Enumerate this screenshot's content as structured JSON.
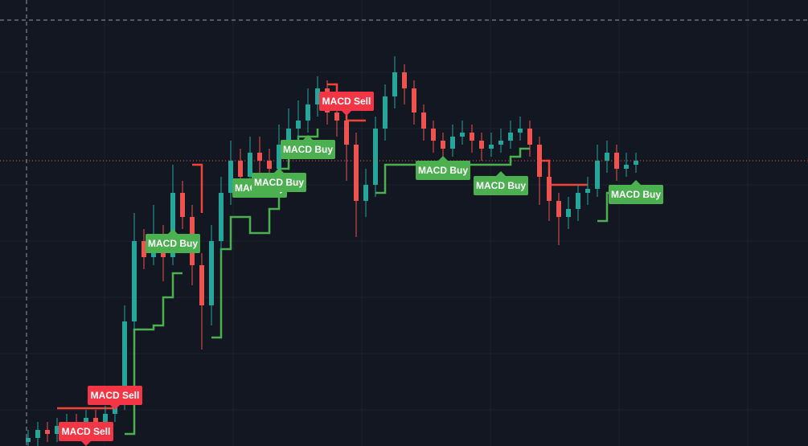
{
  "chart_data": {
    "type": "candlestick",
    "xlim": [
      0,
      80
    ],
    "ylim": [
      0,
      555
    ],
    "up_color": "#26a69a",
    "down_color": "#ef5350",
    "x": [
      0,
      1,
      2,
      3,
      4,
      5,
      6,
      7,
      8,
      9,
      10,
      11,
      12,
      13,
      14,
      15,
      16,
      17,
      18,
      19,
      20,
      21,
      22,
      23,
      24,
      25,
      26,
      27,
      28,
      29,
      30,
      31,
      32,
      33,
      34,
      35,
      36,
      37,
      38,
      39,
      40,
      41,
      42,
      43,
      44,
      45,
      46,
      47,
      48,
      49,
      50,
      51,
      52,
      53,
      54,
      55,
      56,
      57,
      58,
      59,
      60,
      61,
      62,
      63
    ],
    "open": [
      5,
      10,
      20,
      15,
      25,
      30,
      25,
      35,
      30,
      40,
      55,
      155,
      255,
      235,
      255,
      235,
      315,
      285,
      225,
      175,
      255,
      315,
      355,
      335,
      365,
      355,
      345,
      375,
      395,
      405,
      425,
      445,
      415,
      405,
      375,
      305,
      325,
      395,
      435,
      465,
      445,
      415,
      395,
      380,
      370,
      385,
      390,
      380,
      370,
      375,
      380,
      390,
      395,
      375,
      335,
      305,
      285,
      295,
      315,
      320,
      355,
      365,
      345,
      350
    ],
    "high": [
      20,
      30,
      30,
      35,
      40,
      40,
      45,
      45,
      50,
      65,
      175,
      290,
      270,
      300,
      275,
      350,
      330,
      300,
      240,
      275,
      335,
      380,
      370,
      385,
      385,
      370,
      400,
      420,
      430,
      445,
      460,
      455,
      425,
      415,
      390,
      345,
      410,
      450,
      485,
      475,
      455,
      425,
      405,
      390,
      400,
      405,
      400,
      390,
      390,
      395,
      405,
      410,
      405,
      385,
      345,
      315,
      310,
      325,
      335,
      375,
      380,
      375,
      365,
      365
    ],
    "low": [
      0,
      0,
      5,
      5,
      15,
      15,
      15,
      20,
      20,
      30,
      45,
      145,
      220,
      225,
      205,
      225,
      270,
      200,
      120,
      150,
      240,
      300,
      320,
      320,
      340,
      325,
      335,
      360,
      380,
      390,
      410,
      400,
      385,
      330,
      260,
      285,
      310,
      380,
      420,
      425,
      400,
      380,
      365,
      355,
      360,
      375,
      365,
      355,
      360,
      365,
      370,
      380,
      360,
      300,
      280,
      250,
      270,
      280,
      300,
      310,
      340,
      330,
      335,
      340
    ],
    "close": [
      10,
      20,
      15,
      25,
      30,
      25,
      35,
      30,
      40,
      55,
      155,
      255,
      235,
      255,
      235,
      315,
      285,
      225,
      175,
      255,
      315,
      355,
      335,
      365,
      355,
      345,
      375,
      395,
      405,
      425,
      445,
      415,
      405,
      375,
      305,
      325,
      395,
      435,
      465,
      445,
      415,
      395,
      380,
      370,
      385,
      390,
      380,
      370,
      375,
      380,
      390,
      395,
      375,
      335,
      305,
      285,
      295,
      315,
      320,
      355,
      365,
      345,
      350,
      355
    ],
    "stops": [
      {
        "color": "#4caf50",
        "values": [
          null,
          null,
          null,
          null,
          null,
          null,
          null,
          null,
          null,
          null,
          15,
          145,
          145,
          150,
          185,
          215,
          215,
          null,
          null,
          135,
          245,
          285,
          285,
          265,
          265,
          295,
          345,
          365,
          385,
          385,
          395,
          null,
          null,
          null,
          null,
          null,
          315,
          350,
          350,
          350,
          350,
          350,
          350,
          350,
          350,
          350,
          350,
          350,
          350,
          350,
          360,
          370,
          370,
          null,
          null,
          null,
          null,
          null,
          null,
          280,
          315,
          315,
          315,
          315
        ]
      },
      {
        "color": "#f44336",
        "values": [
          null,
          null,
          null,
          47,
          47,
          47,
          47,
          47,
          47,
          47,
          null,
          null,
          null,
          null,
          null,
          null,
          null,
          350,
          290,
          null,
          null,
          null,
          null,
          null,
          null,
          null,
          null,
          null,
          null,
          null,
          null,
          450,
          420,
          405,
          405,
          405,
          null,
          null,
          null,
          null,
          null,
          null,
          null,
          null,
          null,
          null,
          null,
          null,
          null,
          null,
          null,
          null,
          null,
          355,
          325,
          325,
          325,
          325,
          325,
          null,
          null,
          null,
          null,
          null
        ]
      }
    ],
    "signals": [
      {
        "text": "MACD Sell",
        "x": 6,
        "value": 18,
        "color": "#f23645",
        "pointer": "down"
      },
      {
        "text": "MACD Sell",
        "x": 9,
        "value": 63,
        "color": "#f23645",
        "pointer": "down"
      },
      {
        "text": "MACD Buy",
        "x": 15,
        "value": 252,
        "color": "#4caf50",
        "pointer": "up"
      },
      {
        "text": "MACD Buy",
        "x": 24,
        "value": 321,
        "color": "#4caf50",
        "pointer": "up"
      },
      {
        "text": "MACD Buy",
        "x": 26,
        "value": 328,
        "color": "#4caf50",
        "pointer": "up"
      },
      {
        "text": "MACD Buy",
        "x": 29,
        "value": 369,
        "color": "#4caf50",
        "pointer": "up"
      },
      {
        "text": "MACD Sell",
        "x": 33,
        "value": 429,
        "color": "#f23645",
        "pointer": "down"
      },
      {
        "text": "MACD Buy",
        "x": 43,
        "value": 343,
        "color": "#4caf50",
        "pointer": "up"
      },
      {
        "text": "MACD Buy",
        "x": 49,
        "value": 324,
        "color": "#4caf50",
        "pointer": "up"
      },
      {
        "text": "MACD Buy",
        "x": 63,
        "value": 313,
        "color": "#4caf50",
        "pointer": "up"
      }
    ]
  }
}
